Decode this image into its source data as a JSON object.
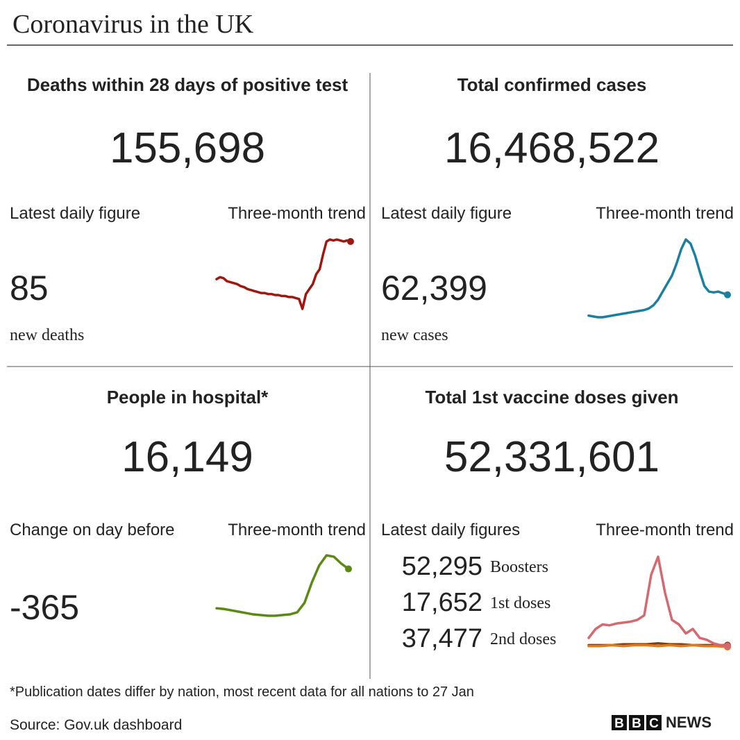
{
  "title": "Coronavirus in the UK",
  "panels": [
    {
      "title": "Deaths within 28 days of positive test",
      "total": "155,698",
      "color": "#a0170f",
      "latest_label": "Latest daily figure",
      "trend_label": "Three-month trend",
      "latest": "85",
      "latest_note": "new deaths",
      "trend": [
        60,
        62,
        61,
        58,
        57,
        56,
        55,
        53,
        52,
        50,
        49,
        48,
        47,
        46,
        46,
        45,
        45,
        44,
        44,
        43,
        43,
        42,
        42,
        41,
        40,
        30,
        45,
        50,
        55,
        65,
        70,
        85,
        98,
        100,
        99,
        100,
        99,
        98,
        99,
        98
      ]
    },
    {
      "title": "Total confirmed cases",
      "total": "16,468,522",
      "color": "#1a7fa0",
      "latest_label": "Latest daily figure",
      "trend_label": "Three-month trend",
      "latest": "62,399",
      "latest_note": "new cases",
      "trend": [
        5,
        4,
        3,
        3,
        4,
        5,
        6,
        7,
        8,
        9,
        10,
        11,
        12,
        14,
        18,
        25,
        35,
        45,
        55,
        70,
        88,
        100,
        95,
        80,
        60,
        42,
        35,
        34,
        35,
        33,
        31
      ]
    },
    {
      "title": "People in hospital*",
      "total": "16,149",
      "color": "#5a8a10",
      "latest_label": "Change on day before",
      "trend_label": "Three-month trend",
      "latest": "-365",
      "trend": [
        22,
        21,
        19,
        17,
        15,
        13,
        12,
        11,
        11,
        12,
        13,
        16,
        30,
        60,
        85,
        100,
        98,
        88,
        80
      ]
    },
    {
      "title": "Total 1st vaccine doses given",
      "total": "52,331,601",
      "color": "#d2741b",
      "latest_label": "Latest daily figures",
      "trend_label": "Three-month trend",
      "rows": [
        {
          "value": "52,295",
          "label": "Boosters",
          "color": "#d46a6f",
          "trend": [
            10,
            20,
            25,
            24,
            26,
            27,
            28,
            30,
            35,
            80,
            100,
            60,
            30,
            25,
            15,
            20,
            10,
            8,
            4,
            2,
            1
          ]
        },
        {
          "value": "17,652",
          "label": "1st doses",
          "color": "#e07b1a",
          "trend": [
            1,
            1,
            2,
            1,
            2,
            2,
            1,
            2,
            1,
            2,
            1,
            1,
            0
          ]
        },
        {
          "value": "37,477",
          "label": "2nd doses",
          "color": "#8a3a0e",
          "trend": [
            2,
            2,
            2,
            3,
            3,
            3,
            4,
            3,
            3,
            2,
            2,
            2,
            2
          ]
        }
      ]
    }
  ],
  "footnote": "*Publication dates differ by nation, most recent data for all nations to 27 Jan",
  "source": "Source: Gov.uk dashboard",
  "logo": {
    "letters": [
      "B",
      "B",
      "C"
    ],
    "word": "NEWS"
  }
}
